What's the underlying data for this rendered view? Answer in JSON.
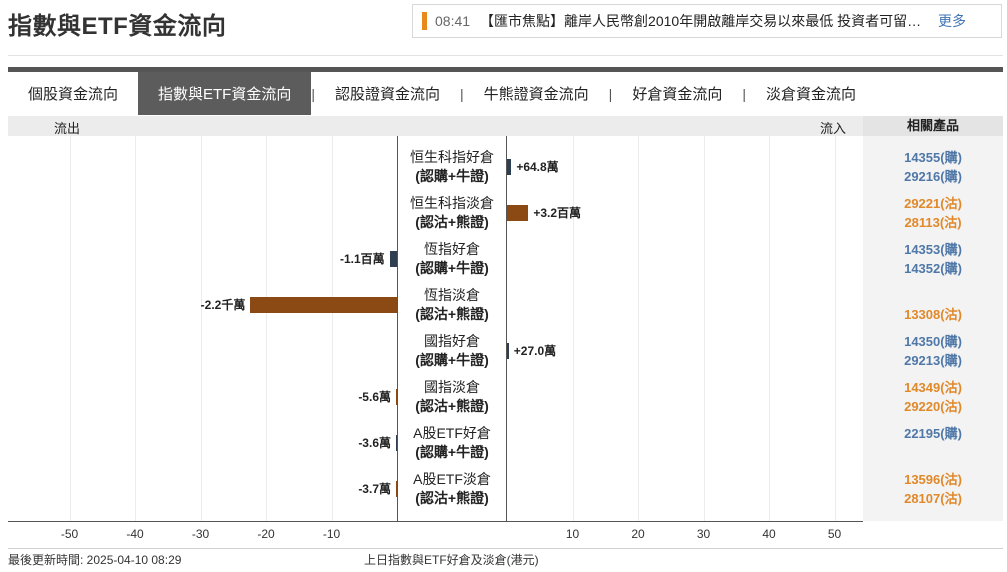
{
  "page_title": "指數與ETF資金流向",
  "ticker": {
    "time": "08:41",
    "headline": "【匯市焦點】離岸人民幣創2010年開啟離岸交易以來最低 投資者可留意以下產品",
    "more": "更多"
  },
  "tabs": [
    {
      "label": "個股資金流向",
      "active": false
    },
    {
      "label": "指數與ETF資金流向",
      "active": true
    },
    {
      "label": "認股證資金流向",
      "active": false
    },
    {
      "label": "牛熊證資金流向",
      "active": false
    },
    {
      "label": "好倉資金流向",
      "active": false
    },
    {
      "label": "淡倉資金流向",
      "active": false
    }
  ],
  "table_header": {
    "outflow": "流出",
    "inflow": "流入",
    "products": "相關產品"
  },
  "colors": {
    "call_bull": "#2e3f52",
    "put_bear": "#8b4a14",
    "call_link": "#4f78a8",
    "put_link": "#e0892a"
  },
  "chart_data": {
    "type": "bar",
    "orientation": "horizontal",
    "unit": "港元",
    "categories": [
      "恒生科指好倉 (認購+牛證)",
      "恒生科指淡倉 (認沽+熊證)",
      "恆指好倉 (認購+牛證)",
      "恆指淡倉 (認沽+熊證)",
      "國指好倉 (認購+牛證)",
      "國指淡倉 (認沽+熊證)",
      "A股ETF好倉 (認購+牛證)",
      "A股ETF淡倉 (認沽+熊證)"
    ],
    "values": [
      648000,
      3200000,
      -1100000,
      -22000000,
      270000,
      -56000,
      -36000,
      -37000
    ],
    "ticks": [
      "-50",
      "-40",
      "-30",
      "-20",
      "-10",
      "10",
      "20",
      "30",
      "40",
      "50"
    ],
    "grid": true
  },
  "rows": [
    {
      "name": "恒生科指好倉",
      "type": "(認購+牛證)",
      "kind": "call",
      "value": 648000,
      "value_label": "+64.8萬",
      "products": [
        {
          "text": "14355(購)",
          "kind": "call"
        },
        {
          "text": "29216(購)",
          "kind": "call"
        }
      ]
    },
    {
      "name": "恒生科指淡倉",
      "type": "(認沽+熊證)",
      "kind": "put",
      "value": 3200000,
      "value_label": "+3.2百萬",
      "products": [
        {
          "text": "29221(沽)",
          "kind": "put"
        },
        {
          "text": "28113(沽)",
          "kind": "put"
        }
      ]
    },
    {
      "name": "恆指好倉",
      "type": "(認購+牛證)",
      "kind": "call",
      "value": -1100000,
      "value_label": "-1.1百萬",
      "products": [
        {
          "text": "14353(購)",
          "kind": "call"
        },
        {
          "text": "14352(購)",
          "kind": "call"
        }
      ]
    },
    {
      "name": "恆指淡倉",
      "type": "(認沽+熊證)",
      "kind": "put",
      "value": -22000000,
      "value_label": "-2.2千萬",
      "products": [
        {
          "text": "",
          "kind": "put"
        },
        {
          "text": "13308(沽)",
          "kind": "put"
        }
      ]
    },
    {
      "name": "國指好倉",
      "type": "(認購+牛證)",
      "kind": "call",
      "value": 270000,
      "value_label": "+27.0萬",
      "products": [
        {
          "text": "14350(購)",
          "kind": "call"
        },
        {
          "text": "29213(購)",
          "kind": "call"
        }
      ]
    },
    {
      "name": "國指淡倉",
      "type": "(認沽+熊證)",
      "kind": "put",
      "value": -56000,
      "value_label": "-5.6萬",
      "products": [
        {
          "text": "14349(沽)",
          "kind": "put"
        },
        {
          "text": "29220(沽)",
          "kind": "put"
        }
      ]
    },
    {
      "name": "A股ETF好倉",
      "type": "(認購+牛證)",
      "kind": "call",
      "value": -36000,
      "value_label": "-3.6萬",
      "products": [
        {
          "text": "22195(購)",
          "kind": "call"
        },
        {
          "text": "",
          "kind": "call"
        }
      ]
    },
    {
      "name": "A股ETF淡倉",
      "type": "(認沽+熊證)",
      "kind": "put",
      "value": -37000,
      "value_label": "-3.7萬",
      "products": [
        {
          "text": "13596(沽)",
          "kind": "put"
        },
        {
          "text": "28107(沽)",
          "kind": "put"
        }
      ]
    }
  ],
  "footer": {
    "updated": "最後更新時間: 2025-04-10 08:29",
    "caption": "上日指數與ETF好倉及淡倉(港元)"
  }
}
